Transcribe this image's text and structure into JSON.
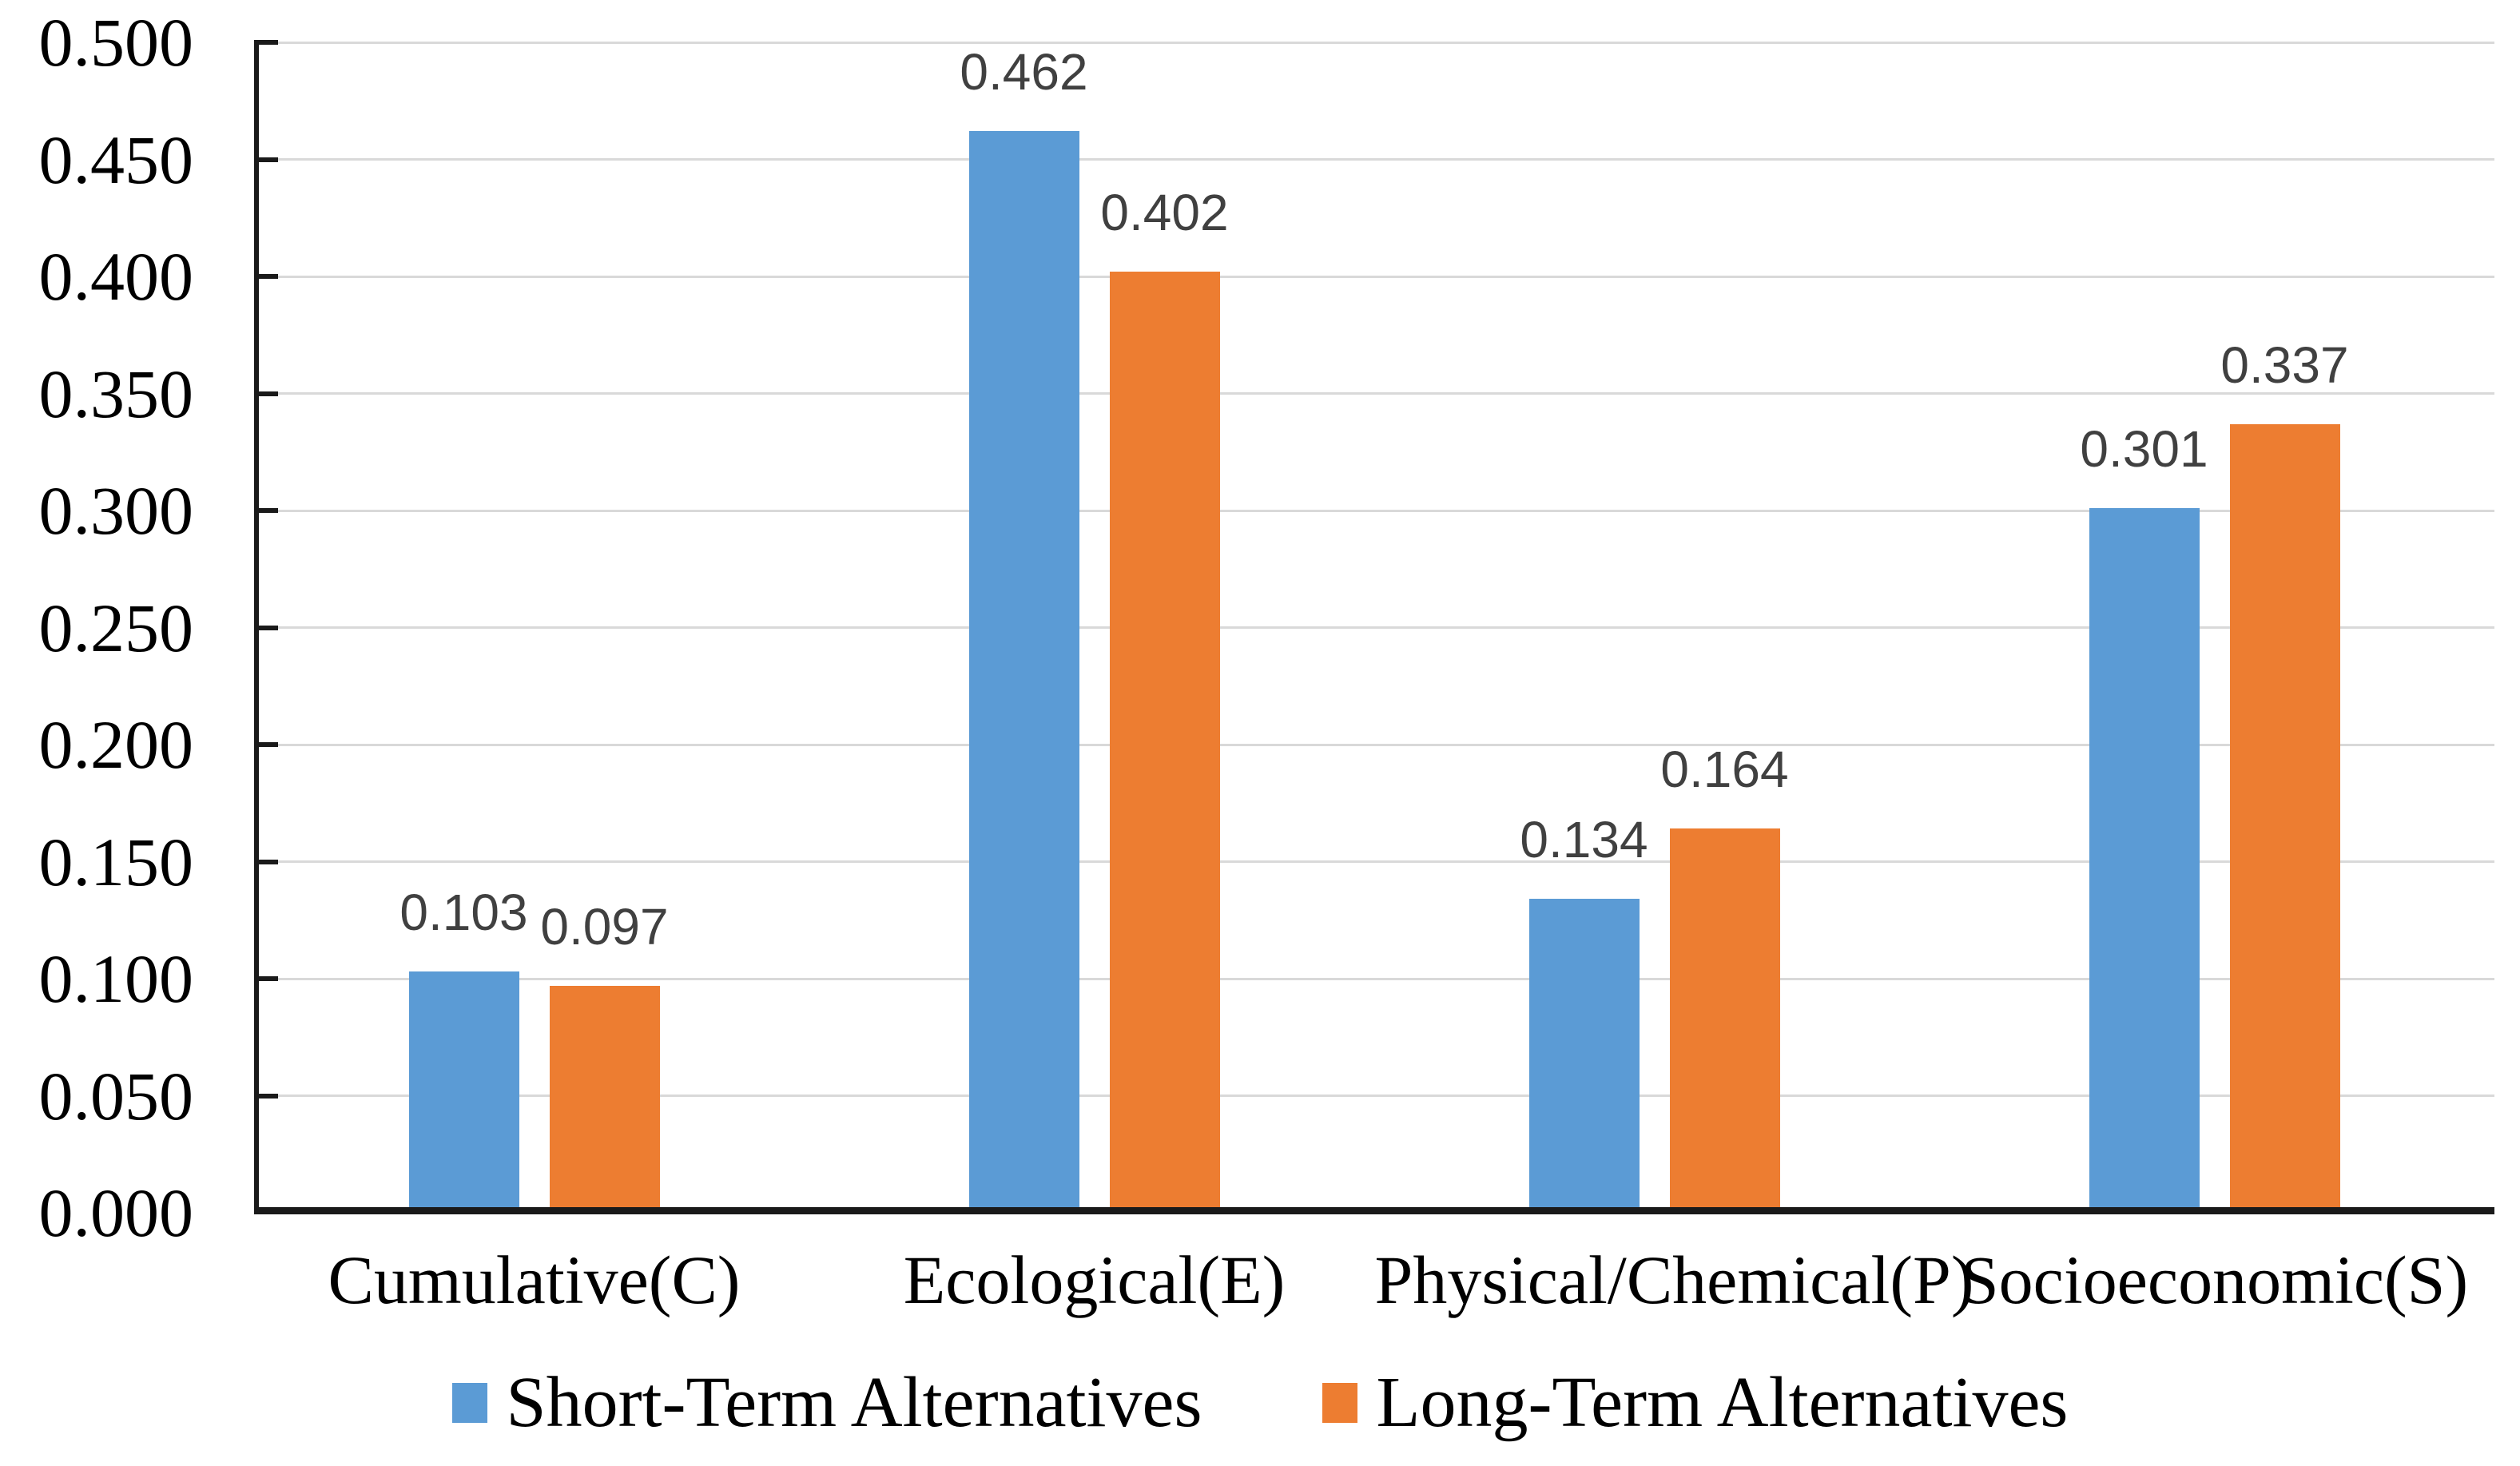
{
  "chart_data": {
    "type": "bar",
    "categories": [
      "Cumulative(C)",
      "Ecological(E)",
      "Physical/Chemical(P)",
      "Socioeconomic(S)"
    ],
    "series": [
      {
        "name": "Short-Term Alternatives",
        "color": "#5B9BD5",
        "values": [
          0.103,
          0.462,
          0.134,
          0.301
        ]
      },
      {
        "name": "Long-Term Alternatives",
        "color": "#ED7D31",
        "values": [
          0.097,
          0.402,
          0.164,
          0.337
        ]
      }
    ],
    "value_labels": [
      [
        "0.103",
        "0.462",
        "0.134",
        "0.301"
      ],
      [
        "0.097",
        "0.402",
        "0.164",
        "0.337"
      ]
    ],
    "title": "",
    "xlabel": "",
    "ylabel": "",
    "ylim": [
      0,
      0.5
    ],
    "yticks": [
      "0.000",
      "0.050",
      "0.100",
      "0.150",
      "0.200",
      "0.250",
      "0.300",
      "0.350",
      "0.400",
      "0.450",
      "0.500"
    ],
    "grid": true,
    "legend_position": "bottom",
    "colors": {
      "gridline": "#D9D9D9",
      "axis_line": "#1A1A1A",
      "tick": "#1A1A1A",
      "value_label_text": "#404040",
      "axis_label_text": "#000000"
    }
  }
}
